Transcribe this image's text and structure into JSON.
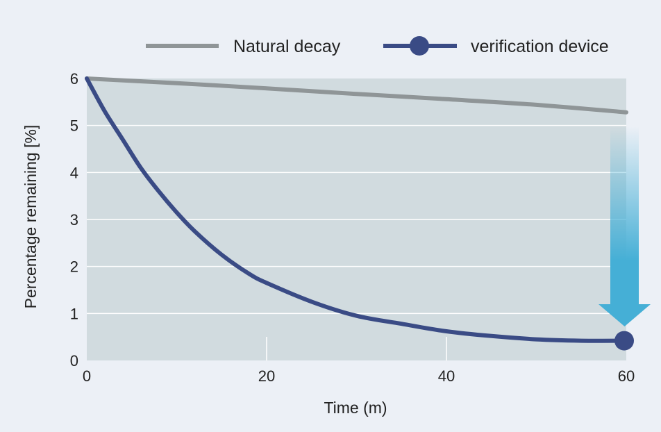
{
  "chart_data": {
    "type": "line",
    "title": "",
    "xlabel": "Time (m)",
    "ylabel": "Percentage remaining [%]",
    "xlim": [
      0,
      60
    ],
    "ylim": [
      0,
      6
    ],
    "xticks": [
      0,
      20,
      40,
      60
    ],
    "yticks": [
      0,
      1,
      2,
      3,
      4,
      5,
      6
    ],
    "grid": "horizontal",
    "legend_position": "top-right",
    "series": [
      {
        "name": "Natural decay",
        "color": "#8f9597",
        "marker": "none",
        "x": [
          0,
          10,
          20,
          30,
          40,
          50,
          60
        ],
        "y": [
          6.0,
          5.9,
          5.79,
          5.67,
          5.56,
          5.44,
          5.28
        ]
      },
      {
        "name": "verification device",
        "color": "#3a4b85",
        "marker": "end-dot",
        "x": [
          0,
          2,
          4,
          6,
          8,
          10,
          12,
          15,
          18,
          20,
          25,
          30,
          35,
          40,
          45,
          50,
          55,
          60
        ],
        "y": [
          6.0,
          5.3,
          4.7,
          4.1,
          3.6,
          3.15,
          2.75,
          2.25,
          1.85,
          1.65,
          1.25,
          0.95,
          0.78,
          0.62,
          0.52,
          0.45,
          0.42,
          0.42
        ]
      }
    ],
    "colors": {
      "plot_background": "#d1dbdf",
      "page_background": "#ecf0f6",
      "gridline": "#ffffff",
      "arrow": "#45afd6"
    }
  }
}
